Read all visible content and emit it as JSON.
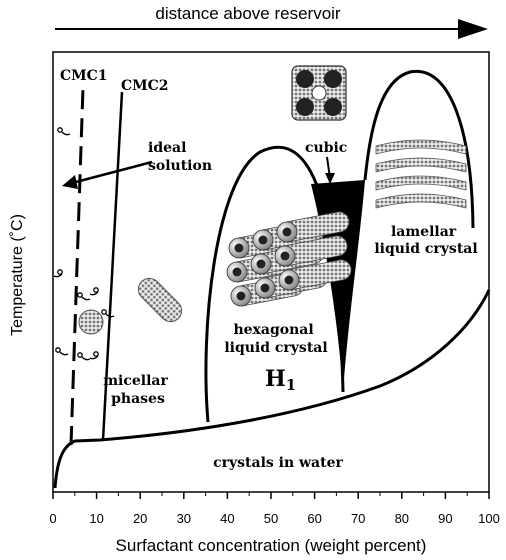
{
  "header": {
    "arrow_label": "distance above reservoir"
  },
  "axes": {
    "xlabel": "Surfactant concentration (weight percent)",
    "ylabel": "Temperature (˚C)",
    "xticks": [
      "0",
      "10",
      "20",
      "30",
      "40",
      "50",
      "60",
      "70",
      "80",
      "90",
      "100"
    ]
  },
  "lines": {
    "cmc1": "CMC1",
    "cmc2": "CMC2"
  },
  "regions": {
    "ideal_solution": [
      "ideal",
      "solution"
    ],
    "micellar_phases": [
      "micellar",
      "phases"
    ],
    "cubic": "cubic",
    "hexagonal": [
      "hexagonal",
      "liquid crystal"
    ],
    "h1_main": "H",
    "h1_sub": "1",
    "lamellar": [
      "lamellar",
      "liquid crystal"
    ],
    "crystals": "crystals in water"
  },
  "colors": {
    "ink": "#000000",
    "paper": "#ffffff",
    "micelle": "#bbbbbb"
  }
}
